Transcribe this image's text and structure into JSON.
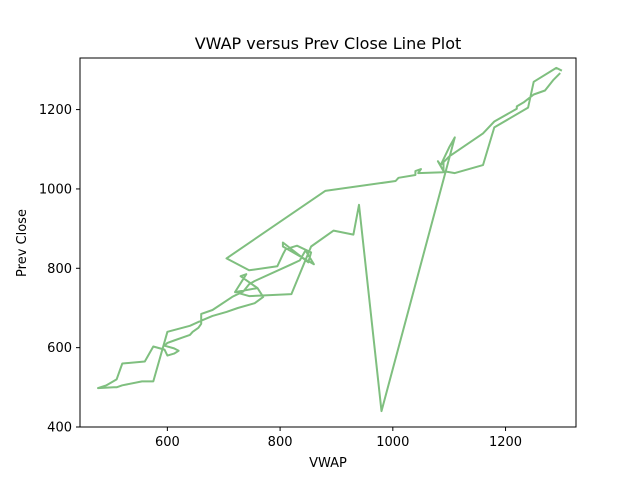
{
  "chart_data": {
    "type": "line",
    "title": "VWAP versus Prev Close Line Plot",
    "xlabel": "VWAP",
    "ylabel": "Prev Close",
    "xlim": [
      445,
      1325
    ],
    "ylim": [
      400,
      1330
    ],
    "xticks": [
      600,
      800,
      1000,
      1200
    ],
    "yticks": [
      400,
      600,
      800,
      1000,
      1200
    ],
    "grid": false,
    "line_color": "#7fbf7f",
    "series": [
      {
        "x": [
          1297,
          1285,
          1270,
          1250,
          1232,
          1220,
          1220,
          1180,
          1160,
          1100,
          1085,
          1090,
          1090,
          1045,
          1050,
          1040,
          1040,
          1010,
          1005,
          880,
          705,
          745,
          795,
          805,
          810,
          830,
          855,
          850,
          805,
          805,
          860,
          845,
          835,
          820,
          755,
          745,
          735,
          715,
          680,
          660,
          660,
          655,
          645,
          640,
          628,
          612,
          600,
          595,
          612,
          620,
          612,
          600,
          595,
          575,
          560,
          520,
          510,
          492,
          477,
          505,
          510,
          520,
          555,
          575,
          600,
          640,
          660,
          680,
          705,
          725,
          755,
          770,
          760,
          730,
          740,
          720,
          760,
          720,
          745,
          820,
          855,
          895,
          930,
          940,
          980,
          1110,
          1100,
          1085,
          1080,
          1090,
          1110,
          1160,
          1180,
          1240,
          1250,
          1290,
          1300
        ],
        "y": [
          1292,
          1275,
          1248,
          1238,
          1218,
          1208,
          1202,
          1170,
          1140,
          1082,
          1060,
          1070,
          1042,
          1040,
          1050,
          1045,
          1035,
          1028,
          1020,
          995,
          825,
          795,
          805,
          835,
          848,
          857,
          840,
          815,
          865,
          855,
          810,
          845,
          820,
          810,
          768,
          760,
          742,
          728,
          695,
          685,
          660,
          650,
          640,
          632,
          626,
          618,
          612,
          605,
          598,
          592,
          585,
          580,
          595,
          603,
          565,
          560,
          520,
          505,
          498,
          500,
          500,
          505,
          515,
          515,
          640,
          655,
          668,
          680,
          690,
          700,
          712,
          728,
          750,
          780,
          785,
          740,
          750,
          740,
          730,
          735,
          855,
          895,
          885,
          960,
          440,
          1130,
          1105,
          1060,
          1070,
          1045,
          1040,
          1060,
          1155,
          1205,
          1270,
          1305,
          1298
        ]
      }
    ]
  }
}
